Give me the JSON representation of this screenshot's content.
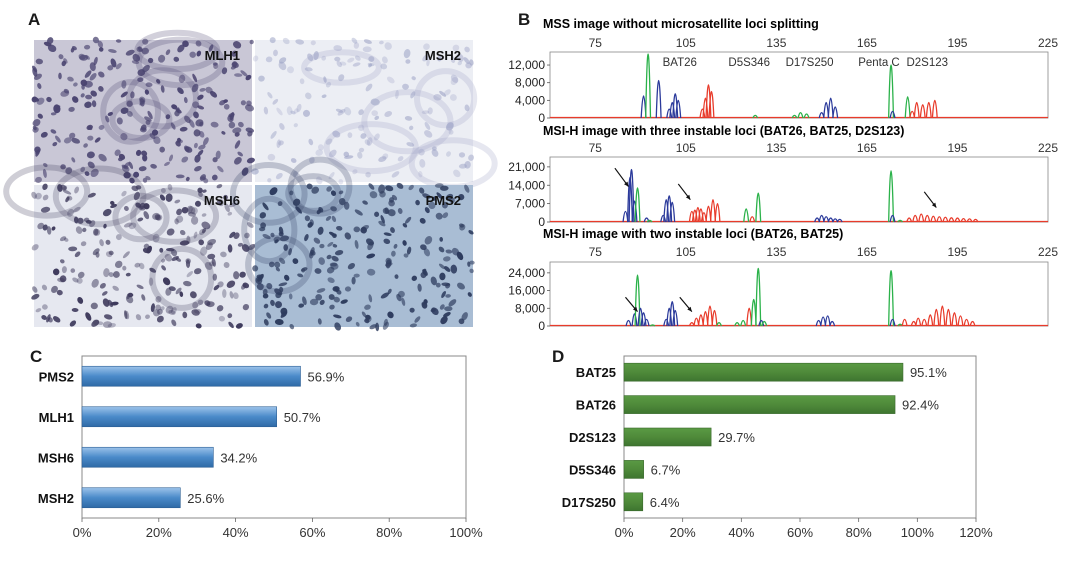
{
  "panelA": {
    "letter": "A",
    "images": [
      {
        "label": "MLH1",
        "tone": "dark",
        "bg": "#c9c7d6",
        "nuc": "#4a4470"
      },
      {
        "label": "MSH2",
        "tone": "light",
        "bg": "#eceef4",
        "nuc": "#9aa0c4"
      },
      {
        "label": "MSH6",
        "tone": "mixed",
        "bg": "#e6e8f0",
        "nuc": "#3e3a5c"
      },
      {
        "label": "PMS2",
        "tone": "blue",
        "bg": "#a9bdd4",
        "nuc": "#2e3c5e"
      }
    ]
  },
  "panelB": {
    "letter": "B",
    "x_ticks": [
      75,
      105,
      135,
      165,
      195,
      225
    ],
    "colors": {
      "blue": "#2b3a9b",
      "green": "#2bb24a",
      "red": "#e83b2b"
    },
    "locus_labels": [
      "BAT26",
      "D5S346",
      "D17S250",
      "Penta C",
      "D2S123"
    ],
    "traces": [
      {
        "title": "MSS image without microsatellite loci splitting",
        "y_ticks": [
          {
            "value": 0,
            "label": "0"
          },
          {
            "value": 4000,
            "label": "4,000"
          },
          {
            "value": 8000,
            "label": "8,000"
          },
          {
            "value": 12000,
            "label": "12,000"
          }
        ],
        "ymax": 14500,
        "arrows": [],
        "peaks": [
          {
            "x": 91.0,
            "h": 5000,
            "c": "blue"
          },
          {
            "x": 92.5,
            "h": 14500,
            "c": "green"
          },
          {
            "x": 96.0,
            "h": 8500,
            "c": "blue"
          },
          {
            "x": 99.5,
            "h": 2000,
            "c": "blue"
          },
          {
            "x": 100.5,
            "h": 3500,
            "c": "blue"
          },
          {
            "x": 101.5,
            "h": 5500,
            "c": "blue"
          },
          {
            "x": 102.5,
            "h": 4000,
            "c": "blue"
          },
          {
            "x": 110.5,
            "h": 2000,
            "c": "red"
          },
          {
            "x": 111.5,
            "h": 4500,
            "c": "red"
          },
          {
            "x": 112.5,
            "h": 7500,
            "c": "red"
          },
          {
            "x": 113.5,
            "h": 6000,
            "c": "red"
          },
          {
            "x": 128.0,
            "h": 600,
            "c": "green"
          },
          {
            "x": 141.0,
            "h": 600,
            "c": "green"
          },
          {
            "x": 143.0,
            "h": 1200,
            "c": "green"
          },
          {
            "x": 145.0,
            "h": 900,
            "c": "green"
          },
          {
            "x": 150.0,
            "h": 1200,
            "c": "blue"
          },
          {
            "x": 151.5,
            "h": 3500,
            "c": "blue"
          },
          {
            "x": 153.0,
            "h": 4500,
            "c": "blue"
          },
          {
            "x": 154.5,
            "h": 2500,
            "c": "blue"
          },
          {
            "x": 173.0,
            "h": 12000,
            "c": "green"
          },
          {
            "x": 173.5,
            "h": 1500,
            "c": "blue"
          },
          {
            "x": 178.5,
            "h": 4800,
            "c": "green"
          },
          {
            "x": 180.0,
            "h": 1500,
            "c": "red"
          },
          {
            "x": 181.5,
            "h": 3500,
            "c": "red"
          },
          {
            "x": 183.5,
            "h": 3000,
            "c": "red"
          },
          {
            "x": 185.5,
            "h": 3500,
            "c": "red"
          },
          {
            "x": 187.5,
            "h": 4000,
            "c": "red"
          }
        ]
      },
      {
        "title": "MSI-H image with three instable loci (BAT26, BAT25, D2S123)",
        "y_ticks": [
          {
            "value": 0,
            "label": "0"
          },
          {
            "value": 7000,
            "label": "7,000"
          },
          {
            "value": 14000,
            "label": "14,000"
          },
          {
            "value": 21000,
            "label": "21,000"
          }
        ],
        "ymax": 24000,
        "arrows": [
          {
            "from": [
              81.5,
              20500
            ],
            "to": [
              86.0,
              13500
            ]
          },
          {
            "from": [
              102.5,
              14500
            ],
            "to": [
              106.5,
              8500
            ]
          },
          {
            "from": [
              184.0,
              11500
            ],
            "to": [
              188.0,
              5500
            ]
          }
        ],
        "peaks": [
          {
            "x": 85.0,
            "h": 4000,
            "c": "blue"
          },
          {
            "x": 86.5,
            "h": 17000,
            "c": "blue"
          },
          {
            "x": 87.0,
            "h": 20000,
            "c": "blue"
          },
          {
            "x": 88.0,
            "h": 8000,
            "c": "blue"
          },
          {
            "x": 89.0,
            "h": 13000,
            "c": "green"
          },
          {
            "x": 92.0,
            "h": 1500,
            "c": "blue"
          },
          {
            "x": 93.0,
            "h": 600,
            "c": "green"
          },
          {
            "x": 97.5,
            "h": 2500,
            "c": "blue"
          },
          {
            "x": 98.5,
            "h": 8500,
            "c": "blue"
          },
          {
            "x": 99.5,
            "h": 10000,
            "c": "blue"
          },
          {
            "x": 100.5,
            "h": 7500,
            "c": "blue"
          },
          {
            "x": 107.0,
            "h": 4000,
            "c": "red"
          },
          {
            "x": 108.0,
            "h": 4500,
            "c": "red"
          },
          {
            "x": 109.0,
            "h": 5500,
            "c": "red"
          },
          {
            "x": 110.0,
            "h": 5000,
            "c": "red"
          },
          {
            "x": 111.0,
            "h": 3500,
            "c": "red"
          },
          {
            "x": 112.5,
            "h": 6000,
            "c": "red"
          },
          {
            "x": 114.0,
            "h": 8500,
            "c": "red"
          },
          {
            "x": 115.5,
            "h": 7000,
            "c": "red"
          },
          {
            "x": 125.0,
            "h": 5000,
            "c": "green"
          },
          {
            "x": 127.0,
            "h": 2000,
            "c": "red"
          },
          {
            "x": 129.0,
            "h": 11000,
            "c": "green"
          },
          {
            "x": 148.5,
            "h": 1500,
            "c": "blue"
          },
          {
            "x": 150.0,
            "h": 2500,
            "c": "blue"
          },
          {
            "x": 151.5,
            "h": 2000,
            "c": "blue"
          },
          {
            "x": 153.0,
            "h": 1500,
            "c": "blue"
          },
          {
            "x": 154.5,
            "h": 1200,
            "c": "blue"
          },
          {
            "x": 156.0,
            "h": 1000,
            "c": "blue"
          },
          {
            "x": 173.0,
            "h": 19500,
            "c": "green"
          },
          {
            "x": 173.5,
            "h": 2500,
            "c": "blue"
          },
          {
            "x": 176.0,
            "h": 600,
            "c": "green"
          },
          {
            "x": 179.0,
            "h": 1500,
            "c": "red"
          },
          {
            "x": 181.0,
            "h": 2500,
            "c": "red"
          },
          {
            "x": 183.0,
            "h": 3000,
            "c": "red"
          },
          {
            "x": 185.0,
            "h": 2500,
            "c": "red"
          },
          {
            "x": 187.0,
            "h": 2200,
            "c": "red"
          },
          {
            "x": 189.0,
            "h": 2000,
            "c": "red"
          },
          {
            "x": 191.0,
            "h": 1800,
            "c": "red"
          },
          {
            "x": 193.0,
            "h": 1600,
            "c": "red"
          },
          {
            "x": 195.0,
            "h": 1500,
            "c": "red"
          },
          {
            "x": 197.0,
            "h": 1300,
            "c": "red"
          },
          {
            "x": 199.0,
            "h": 1200,
            "c": "red"
          },
          {
            "x": 201.0,
            "h": 1000,
            "c": "red"
          }
        ]
      },
      {
        "title": "MSI-H image with two instable loci (BAT26, BAT25)",
        "y_ticks": [
          {
            "value": 0,
            "label": "0"
          },
          {
            "value": 8000,
            "label": "8,000"
          },
          {
            "value": 16000,
            "label": "16,000"
          },
          {
            "value": 24000,
            "label": "24,000"
          }
        ],
        "ymax": 28000,
        "arrows": [
          {
            "from": [
              85.0,
              13000
            ],
            "to": [
              89.0,
              6500
            ]
          },
          {
            "from": [
              103.0,
              13000
            ],
            "to": [
              107.0,
              6500
            ]
          }
        ],
        "peaks": [
          {
            "x": 86.0,
            "h": 2500,
            "c": "blue"
          },
          {
            "x": 88.0,
            "h": 5500,
            "c": "blue"
          },
          {
            "x": 89.0,
            "h": 23000,
            "c": "green"
          },
          {
            "x": 90.0,
            "h": 8000,
            "c": "blue"
          },
          {
            "x": 91.0,
            "h": 6000,
            "c": "blue"
          },
          {
            "x": 92.0,
            "h": 3000,
            "c": "blue"
          },
          {
            "x": 94.0,
            "h": 500,
            "c": "green"
          },
          {
            "x": 98.5,
            "h": 3000,
            "c": "blue"
          },
          {
            "x": 99.5,
            "h": 8000,
            "c": "blue"
          },
          {
            "x": 100.5,
            "h": 11000,
            "c": "blue"
          },
          {
            "x": 101.5,
            "h": 7000,
            "c": "blue"
          },
          {
            "x": 107.0,
            "h": 1500,
            "c": "red"
          },
          {
            "x": 108.5,
            "h": 3500,
            "c": "red"
          },
          {
            "x": 110.0,
            "h": 5000,
            "c": "red"
          },
          {
            "x": 111.5,
            "h": 6500,
            "c": "red"
          },
          {
            "x": 113.0,
            "h": 9000,
            "c": "red"
          },
          {
            "x": 114.5,
            "h": 7000,
            "c": "red"
          },
          {
            "x": 116.0,
            "h": 1500,
            "c": "green"
          },
          {
            "x": 122.0,
            "h": 1500,
            "c": "green"
          },
          {
            "x": 124.0,
            "h": 2500,
            "c": "green"
          },
          {
            "x": 126.0,
            "h": 8000,
            "c": "red"
          },
          {
            "x": 127.5,
            "h": 12000,
            "c": "green"
          },
          {
            "x": 129.0,
            "h": 26000,
            "c": "green"
          },
          {
            "x": 130.0,
            "h": 2500,
            "c": "blue"
          },
          {
            "x": 131.0,
            "h": 2000,
            "c": "green"
          },
          {
            "x": 149.0,
            "h": 2500,
            "c": "blue"
          },
          {
            "x": 150.5,
            "h": 4000,
            "c": "blue"
          },
          {
            "x": 152.0,
            "h": 4500,
            "c": "blue"
          },
          {
            "x": 153.5,
            "h": 2000,
            "c": "blue"
          },
          {
            "x": 173.0,
            "h": 25000,
            "c": "green"
          },
          {
            "x": 173.5,
            "h": 3000,
            "c": "blue"
          },
          {
            "x": 176.0,
            "h": 800,
            "c": "green"
          },
          {
            "x": 177.5,
            "h": 3000,
            "c": "red"
          },
          {
            "x": 180.5,
            "h": 2000,
            "c": "red"
          },
          {
            "x": 182.0,
            "h": 3500,
            "c": "red"
          },
          {
            "x": 184.0,
            "h": 3000,
            "c": "red"
          },
          {
            "x": 186.0,
            "h": 5000,
            "c": "red"
          },
          {
            "x": 188.0,
            "h": 7500,
            "c": "red"
          },
          {
            "x": 190.0,
            "h": 9000,
            "c": "red"
          },
          {
            "x": 192.0,
            "h": 7500,
            "c": "red"
          },
          {
            "x": 194.0,
            "h": 6000,
            "c": "red"
          },
          {
            "x": 196.0,
            "h": 4500,
            "c": "red"
          },
          {
            "x": 198.0,
            "h": 3000,
            "c": "red"
          },
          {
            "x": 200.0,
            "h": 2000,
            "c": "red"
          }
        ]
      }
    ]
  },
  "chart_data": [
    {
      "panel": "C",
      "type": "bar",
      "orientation": "horizontal",
      "categories": [
        "PMS2",
        "MLH1",
        "MSH6",
        "MSH2"
      ],
      "values": [
        56.9,
        50.7,
        34.2,
        25.6
      ],
      "value_labels": [
        "56.9%",
        "50.7%",
        "34.2%",
        "25.6%"
      ],
      "xlim": [
        0,
        100
      ],
      "x_ticks": [
        "0%",
        "20%",
        "40%",
        "60%",
        "80%",
        "100%"
      ],
      "color": "#4a8ac9",
      "title": "",
      "xlabel": "",
      "ylabel": ""
    },
    {
      "panel": "D",
      "type": "bar",
      "orientation": "horizontal",
      "categories": [
        "BAT25",
        "BAT26",
        "D2S123",
        "D5S346",
        "D17S250"
      ],
      "values": [
        95.1,
        92.4,
        29.7,
        6.7,
        6.4
      ],
      "value_labels": [
        "95.1%",
        "92.4%",
        "29.7%",
        "6.7%",
        "6.4%"
      ],
      "xlim": [
        0,
        120
      ],
      "x_ticks": [
        "0%",
        "20%",
        "40%",
        "60%",
        "80%",
        "100%",
        "120%"
      ],
      "color": "#4f8a3a",
      "title": "",
      "xlabel": "",
      "ylabel": ""
    }
  ]
}
